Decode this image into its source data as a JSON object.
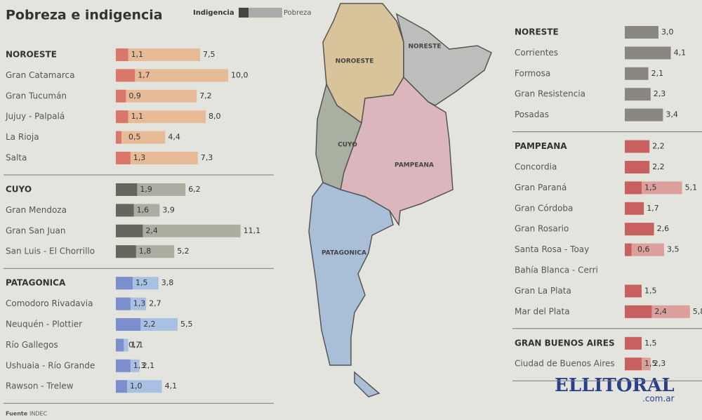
{
  "title": "Pobreza e indigencia",
  "legend": {
    "indigencia": "Indigencia",
    "pobreza": "Pobreza"
  },
  "map_labels": {
    "noroeste": "NOROESTE",
    "noreste": "NORESTE",
    "cuyo": "CUYO",
    "pampeana": "PAMPEANA",
    "patagonica": "PATAGONICA"
  },
  "source": {
    "label": "Fuente",
    "text": "INDEC"
  },
  "watermark": {
    "name": "ELLITORAL",
    "domain": ".com.ar"
  },
  "left_groups": [
    {
      "name": "NOROESTE",
      "colors": [
        "#d9776a",
        "#e8bb98"
      ],
      "values": [
        1.1,
        7.5
      ],
      "value_labels": [
        "1,1",
        "7,5"
      ],
      "rows": [
        {
          "name": "Gran Catamarca",
          "values": [
            1.7,
            10.0
          ],
          "value_labels": [
            "1,7",
            "10,0"
          ]
        },
        {
          "name": "Gran Tucumán",
          "values": [
            0.9,
            7.2
          ],
          "value_labels": [
            "0,9",
            "7,2"
          ]
        },
        {
          "name": "Jujuy - Palpalá",
          "values": [
            1.1,
            8.0
          ],
          "value_labels": [
            "1,1",
            "8,0"
          ]
        },
        {
          "name": "La Rioja",
          "values": [
            0.5,
            4.4
          ],
          "value_labels": [
            "0,5",
            "4,4"
          ]
        },
        {
          "name": "Salta",
          "values": [
            1.3,
            7.3
          ],
          "value_labels": [
            "1,3",
            "7,3"
          ]
        }
      ]
    },
    {
      "name": "CUYO",
      "colors": [
        "#66665c",
        "#acaca0"
      ],
      "values": [
        1.9,
        6.2
      ],
      "value_labels": [
        "1,9",
        "6,2"
      ],
      "rows": [
        {
          "name": "Gran Mendoza",
          "values": [
            1.6,
            3.9
          ],
          "value_labels": [
            "1,6",
            "3,9"
          ]
        },
        {
          "name": "Gran San Juan",
          "values": [
            2.4,
            11.1
          ],
          "value_labels": [
            "2,4",
            "11,1"
          ]
        },
        {
          "name": "San Luis - El Chorrillo",
          "values": [
            1.8,
            5.2
          ],
          "value_labels": [
            "1,8",
            "5,2"
          ]
        }
      ]
    },
    {
      "name": "PATAGONICA",
      "colors": [
        "#7c8fcc",
        "#a8c0e2"
      ],
      "values": [
        1.5,
        3.8
      ],
      "value_labels": [
        "1,5",
        "3,8"
      ],
      "rows": [
        {
          "name": "Comodoro Rivadavia",
          "values": [
            1.3,
            2.7
          ],
          "value_labels": [
            "1,3",
            "2,7"
          ]
        },
        {
          "name": "Neuquén - Plottier",
          "values": [
            2.2,
            5.5
          ],
          "value_labels": [
            "2,2",
            "5,5"
          ]
        },
        {
          "name": "Río Gallegos",
          "values": [
            0.7,
            1.1
          ],
          "value_labels": [
            "0,7",
            "1,1"
          ]
        },
        {
          "name": "Ushuaia - Río Grande",
          "values": [
            1.3,
            2.1
          ],
          "value_labels": [
            "1,3",
            "2,1"
          ]
        },
        {
          "name": "Rawson - Trelew",
          "values": [
            1.0,
            4.1
          ],
          "value_labels": [
            "1,0",
            "4,1"
          ]
        }
      ]
    }
  ],
  "right_groups": [
    {
      "name": "NORESTE",
      "colors": [
        "#8a8680",
        "#aaa6a0"
      ],
      "values": [
        3.0,
        null
      ],
      "value_labels": [
        "3,0",
        null
      ],
      "rows": [
        {
          "name": "Corrientes",
          "values": [
            4.1,
            null
          ],
          "value_labels": [
            "4,1",
            null
          ]
        },
        {
          "name": "Formosa",
          "values": [
            2.1,
            null
          ],
          "value_labels": [
            "2,1",
            null
          ]
        },
        {
          "name": "Gran Resistencia",
          "values": [
            2.3,
            null
          ],
          "value_labels": [
            "2,3",
            null
          ]
        },
        {
          "name": "Posadas",
          "values": [
            3.4,
            null
          ],
          "value_labels": [
            "3,4",
            null
          ]
        }
      ]
    },
    {
      "name": "PAMPEANA",
      "colors": [
        "#c8605f",
        "#dca09c"
      ],
      "values": [
        2.2,
        null
      ],
      "value_labels": [
        "2,2",
        null
      ],
      "rows": [
        {
          "name": "Concordia",
          "values": [
            2.2,
            null
          ],
          "value_labels": [
            "2,2",
            null
          ]
        },
        {
          "name": "Gran Paraná",
          "values": [
            1.5,
            5.1
          ],
          "value_labels": [
            "1,5",
            "5,1"
          ]
        },
        {
          "name": "Gran Córdoba",
          "values": [
            1.7,
            null
          ],
          "value_labels": [
            "1,7",
            null
          ]
        },
        {
          "name": "Gran Rosario",
          "values": [
            2.6,
            null
          ],
          "value_labels": [
            "2,6",
            null
          ]
        },
        {
          "name": "Santa Rosa - Toay",
          "values": [
            0.6,
            3.5
          ],
          "value_labels": [
            "0,6",
            "3,5"
          ]
        },
        {
          "name": "Bahía Blanca - Cerri",
          "values": [
            null,
            null
          ],
          "value_labels": [
            null,
            null
          ]
        },
        {
          "name": "Gran La Plata",
          "values": [
            1.5,
            null
          ],
          "value_labels": [
            "1,5",
            null
          ]
        },
        {
          "name": "Mar del Plata",
          "values": [
            2.4,
            5.8
          ],
          "value_labels": [
            "2,4",
            "5,8"
          ]
        }
      ]
    },
    {
      "name": "GRAN BUENOS AIRES",
      "colors": [
        "#c8605f",
        "#dca09c"
      ],
      "values": [
        1.5,
        null
      ],
      "value_labels": [
        "1,5",
        null
      ],
      "rows": [
        {
          "name": "Ciudad de Buenos Aires",
          "values": [
            1.5,
            2.3
          ],
          "value_labels": [
            "1,5",
            "2,3"
          ]
        }
      ]
    }
  ]
}
